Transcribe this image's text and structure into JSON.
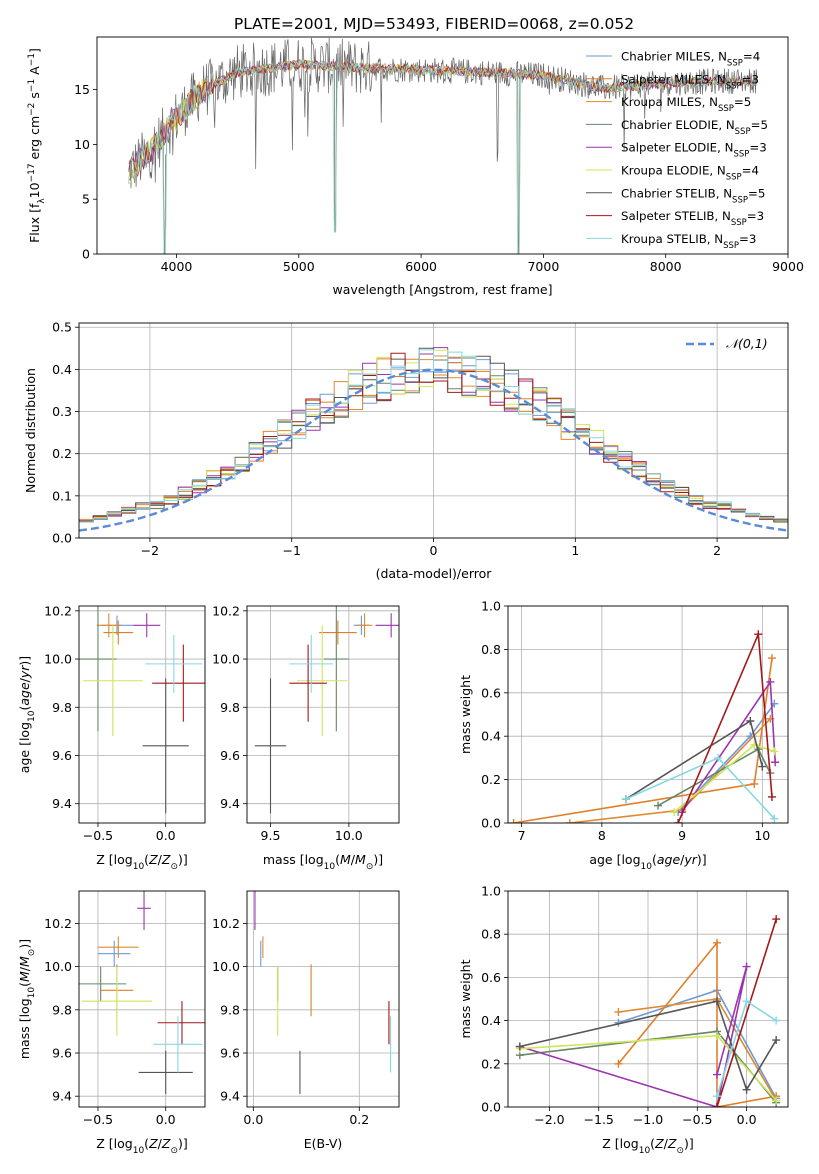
{
  "page_title": "PLATE=2001, MJD=53493, FIBERID=0068, z=0.052",
  "series": [
    {
      "label": "Chabrier MILES, N$_{SSP}$=4",
      "name": "Chabrier MILES",
      "nssp": "4",
      "color": "#6f99d9"
    },
    {
      "label": "Salpeter MILES, N$_{SSP}$=3",
      "name": "Salpeter MILES",
      "nssp": "3",
      "color": "#e07f2a"
    },
    {
      "label": "Kroupa MILES, N$_{SSP}$=5",
      "name": "Kroupa MILES",
      "nssp": "5",
      "color": "#df8a30"
    },
    {
      "label": "Chabrier ELODIE, N$_{SSP}$=5",
      "name": "Chabrier ELODIE",
      "nssp": "5",
      "color": "#66876b"
    },
    {
      "label": "Salpeter ELODIE, N$_{SSP}$=3",
      "name": "Salpeter ELODIE",
      "nssp": "3",
      "color": "#9a35ae"
    },
    {
      "label": "Kroupa ELODIE, N$_{SSP}$=4",
      "name": "Kroupa ELODIE",
      "nssp": "4",
      "color": "#cfe65a"
    },
    {
      "label": "Chabrier STELIB, N$_{SSP}$=5",
      "name": "Chabrier STELIB",
      "nssp": "5",
      "color": "#555555"
    },
    {
      "label": "Salpeter STELIB, N$_{SSP}$=3",
      "name": "Salpeter STELIB",
      "nssp": "3",
      "color": "#a3191b"
    },
    {
      "label": "Kroupa STELIB, N$_{SSP}$=3",
      "name": "Kroupa STELIB",
      "nssp": "3",
      "color": "#86d8e0"
    }
  ],
  "chart_data": [
    {
      "id": "spectrum",
      "type": "line",
      "xlabel": "wavelength [Angstrom, rest frame]",
      "ylabel": "Flux [f_λ10^-17 erg cm^-2 s^-1 A^-1]",
      "xlim": [
        3350,
        9000
      ],
      "ylim": [
        0,
        19.8
      ],
      "xticks": [
        4000,
        5000,
        6000,
        7000,
        8000,
        9000
      ],
      "yticks": [
        0,
        5,
        10,
        15
      ],
      "grid": false,
      "legend": "right",
      "data_range": [
        3610,
        8750
      ],
      "continuum": {
        "x": [
          3610,
          3800,
          4000,
          4200,
          4500,
          5000,
          5500,
          6000,
          6500,
          7000,
          7500,
          8000,
          8500,
          8750
        ],
        "y": [
          7.5,
          9.5,
          12.5,
          14.8,
          16.6,
          17.3,
          17.0,
          16.8,
          16.6,
          16.3,
          15.1,
          15.6,
          15.8,
          15.8
        ]
      },
      "dips": [
        {
          "x": 6800,
          "y": 0
        },
        {
          "x": 3900,
          "y": 0
        },
        {
          "x": 5300,
          "y": 2
        }
      ]
    },
    {
      "id": "residuals",
      "type": "histogram",
      "xlabel": "(data-model)/error",
      "ylabel": "Normed distribution",
      "xlim": [
        -2.5,
        2.5
      ],
      "ylim": [
        0,
        0.51
      ],
      "xticks": [
        -2,
        -1,
        0,
        1,
        2
      ],
      "yticks": [
        0.0,
        0.1,
        0.2,
        0.3,
        0.4,
        0.5
      ],
      "grid": true,
      "legend": "top-right",
      "reference_curve": {
        "label": "𝒩(0,1)",
        "mean": 0,
        "sigma": 1
      },
      "bin_width": 0.1,
      "bin_start": -2.5
    },
    {
      "id": "z-age",
      "type": "errorbar",
      "xlabel": "Z [log10(Z/Z⊙)]",
      "ylabel": "age [log10(age/yr)]",
      "xlim": [
        -0.64,
        0.29
      ],
      "ylim": [
        9.32,
        10.22
      ],
      "xticks": [
        -0.5,
        0.0
      ],
      "yticks": [
        9.4,
        9.6,
        9.8,
        10.0,
        10.2
      ],
      "grid": true,
      "points": [
        {
          "s": 0,
          "x": -0.36,
          "xe": 0.12,
          "y": 10.14,
          "ye": 0.04
        },
        {
          "s": 1,
          "x": -0.35,
          "xe": 0.11,
          "y": 10.11,
          "ye": 0.05
        },
        {
          "s": 2,
          "x": -0.42,
          "xe": 0.09,
          "y": 10.14,
          "ye": 0.05
        },
        {
          "s": 3,
          "x": -0.5,
          "xe": 0.14,
          "y": 10.0,
          "ye": 0.3
        },
        {
          "s": 4,
          "x": -0.14,
          "xe": 0.1,
          "y": 10.14,
          "ye": 0.05
        },
        {
          "s": 5,
          "x": -0.39,
          "xe": 0.22,
          "y": 9.91,
          "ye": 0.23
        },
        {
          "s": 6,
          "x": 0.0,
          "xe": 0.17,
          "y": 9.64,
          "ye": 0.28
        },
        {
          "s": 7,
          "x": 0.13,
          "xe": 0.23,
          "y": 9.9,
          "ye": 0.16
        },
        {
          "s": 8,
          "x": 0.06,
          "xe": 0.21,
          "y": 9.98,
          "ye": 0.12
        }
      ]
    },
    {
      "id": "mass-age",
      "type": "errorbar",
      "xlabel": "mass [log10(M/M⊙)]",
      "ylabel": "",
      "xlim": [
        9.35,
        10.32
      ],
      "ylim": [
        9.32,
        10.22
      ],
      "xticks": [
        9.5,
        10.0
      ],
      "yticks": [
        9.4,
        9.6,
        9.8,
        10.0,
        10.2
      ],
      "grid": true,
      "points": [
        {
          "s": 0,
          "x": 10.08,
          "xe": 0.05,
          "y": 10.14,
          "ye": 0.04
        },
        {
          "s": 1,
          "x": 9.93,
          "xe": 0.12,
          "y": 10.11,
          "ye": 0.05
        },
        {
          "s": 2,
          "x": 10.1,
          "xe": 0.05,
          "y": 10.14,
          "ye": 0.05
        },
        {
          "s": 3,
          "x": 9.92,
          "xe": 0.08,
          "y": 10.0,
          "ye": 0.3
        },
        {
          "s": 4,
          "x": 10.27,
          "xe": 0.1,
          "y": 10.14,
          "ye": 0.05
        },
        {
          "s": 5,
          "x": 9.83,
          "xe": 0.16,
          "y": 9.91,
          "ye": 0.23
        },
        {
          "s": 6,
          "x": 9.5,
          "xe": 0.1,
          "y": 9.64,
          "ye": 0.28
        },
        {
          "s": 7,
          "x": 9.74,
          "xe": 0.12,
          "y": 9.9,
          "ye": 0.16
        },
        {
          "s": 8,
          "x": 9.76,
          "xe": 0.14,
          "y": 9.98,
          "ye": 0.12
        }
      ]
    },
    {
      "id": "age-weight",
      "type": "line",
      "xlabel": "age [log10(age/yr)]",
      "ylabel": "mass weight",
      "xlim": [
        6.83,
        10.32
      ],
      "ylim": [
        0,
        1.0
      ],
      "xticks": [
        7,
        8,
        9,
        10
      ],
      "yticks": [
        0.0,
        0.2,
        0.4,
        0.6,
        0.8,
        1.0
      ],
      "grid": true,
      "lines": [
        {
          "s": 0,
          "x": [
            8.95,
            9.85,
            10.15
          ],
          "y": [
            0.05,
            0.4,
            0.55
          ]
        },
        {
          "s": 1,
          "x": [
            6.9,
            9.9,
            10.12
          ],
          "y": [
            0.0,
            0.18,
            0.76
          ]
        },
        {
          "s": 2,
          "x": [
            7.6,
            9.0,
            10.1
          ],
          "y": [
            0.0,
            0.06,
            0.48
          ]
        },
        {
          "s": 3,
          "x": [
            8.7,
            9.95,
            10.1
          ],
          "y": [
            0.08,
            0.34,
            0.23
          ]
        },
        {
          "s": 4,
          "x": [
            9.0,
            10.1,
            10.16
          ],
          "y": [
            0.05,
            0.65,
            0.28
          ]
        },
        {
          "s": 5,
          "x": [
            8.9,
            9.9,
            10.15
          ],
          "y": [
            0.05,
            0.36,
            0.33
          ]
        },
        {
          "s": 6,
          "x": [
            8.3,
            9.85,
            10.0
          ],
          "y": [
            0.11,
            0.47,
            0.26
          ]
        },
        {
          "s": 7,
          "x": [
            8.95,
            9.95,
            10.12
          ],
          "y": [
            0.0,
            0.87,
            0.12
          ]
        },
        {
          "s": 8,
          "x": [
            8.3,
            9.45,
            10.15
          ],
          "y": [
            0.11,
            0.3,
            0.02
          ]
        }
      ]
    },
    {
      "id": "z-mass",
      "type": "errorbar",
      "xlabel": "Z [log10(Z/Z⊙)]",
      "ylabel": "mass [log10(M/M⊙)]",
      "xlim": [
        -0.64,
        0.29
      ],
      "ylim": [
        9.35,
        10.35
      ],
      "xticks": [
        -0.5,
        0.0
      ],
      "yticks": [
        9.4,
        9.6,
        9.8,
        10.0,
        10.2
      ],
      "grid": true,
      "points": [
        {
          "s": 0,
          "x": -0.38,
          "xe": 0.12,
          "y": 10.06,
          "ye": 0.06
        },
        {
          "s": 1,
          "x": -0.36,
          "xe": 0.12,
          "y": 9.89,
          "ye": 0.12
        },
        {
          "s": 2,
          "x": -0.35,
          "xe": 0.15,
          "y": 10.09,
          "ye": 0.05
        },
        {
          "s": 3,
          "x": -0.48,
          "xe": 0.19,
          "y": 9.92,
          "ye": 0.08
        },
        {
          "s": 4,
          "x": -0.16,
          "xe": 0.05,
          "y": 10.27,
          "ye": 0.1
        },
        {
          "s": 5,
          "x": -0.36,
          "xe": 0.26,
          "y": 9.84,
          "ye": 0.16
        },
        {
          "s": 6,
          "x": 0.0,
          "xe": 0.2,
          "y": 9.51,
          "ye": 0.1
        },
        {
          "s": 7,
          "x": 0.12,
          "xe": 0.18,
          "y": 9.74,
          "ye": 0.1
        },
        {
          "s": 8,
          "x": 0.09,
          "xe": 0.18,
          "y": 9.64,
          "ye": 0.13
        }
      ]
    },
    {
      "id": "ebv-mass",
      "type": "errorbar",
      "xlabel": "E(B-V)",
      "ylabel": "",
      "xlim": [
        -0.012,
        0.275
      ],
      "ylim": [
        9.35,
        10.35
      ],
      "xticks": [
        0.0,
        0.2
      ],
      "yticks": [
        9.4,
        9.6,
        9.8,
        10.0,
        10.2
      ],
      "grid": true,
      "points": [
        {
          "s": 0,
          "x": 0.014,
          "xe": 0,
          "y": 10.06,
          "ye": 0.06
        },
        {
          "s": 1,
          "x": 0.109,
          "xe": 0,
          "y": 9.89,
          "ye": 0.12
        },
        {
          "s": 2,
          "x": 0.018,
          "xe": 0,
          "y": 10.09,
          "ye": 0.05
        },
        {
          "s": 3,
          "x": 0.046,
          "xe": 0,
          "y": 9.92,
          "ye": 0.08
        },
        {
          "s": 4,
          "x": 0.003,
          "xe": 0,
          "y": 10.27,
          "ye": 0.1
        },
        {
          "s": 5,
          "x": 0.046,
          "xe": 0,
          "y": 9.84,
          "ye": 0.16
        },
        {
          "s": 6,
          "x": 0.088,
          "xe": 0,
          "y": 9.51,
          "ye": 0.1
        },
        {
          "s": 7,
          "x": 0.256,
          "xe": 0,
          "y": 9.74,
          "ye": 0.1
        },
        {
          "s": 8,
          "x": 0.259,
          "xe": 0,
          "y": 9.64,
          "ye": 0.13
        }
      ]
    },
    {
      "id": "z-weight",
      "type": "line",
      "xlabel": "Z [log10(Z/Z⊙)]",
      "ylabel": "mass weight",
      "xlim": [
        -2.42,
        0.42
      ],
      "ylim": [
        0,
        1.0
      ],
      "xticks": [
        -2.0,
        -1.5,
        -1.0,
        -0.5,
        0.0
      ],
      "yticks": [
        0.0,
        0.2,
        0.4,
        0.6,
        0.8,
        1.0
      ],
      "grid": true,
      "lines": [
        {
          "s": 0,
          "x": [
            -1.3,
            -0.3,
            0.3
          ],
          "y": [
            0.39,
            0.54,
            0.04
          ]
        },
        {
          "s": 1,
          "x": [
            -1.3,
            -0.3,
            -0.3,
            0.3
          ],
          "y": [
            0.2,
            0.76,
            0.0,
            0.05
          ]
        },
        {
          "s": 2,
          "x": [
            -1.3,
            -0.3,
            0.3
          ],
          "y": [
            0.44,
            0.5,
            0.03
          ]
        },
        {
          "s": 3,
          "x": [
            -2.3,
            -0.3,
            0.3
          ],
          "y": [
            0.24,
            0.35,
            0.02
          ]
        },
        {
          "s": 4,
          "x": [
            -2.3,
            -0.3,
            0.0,
            -0.3
          ],
          "y": [
            0.28,
            0.0,
            0.65,
            0.15
          ]
        },
        {
          "s": 5,
          "x": [
            -2.3,
            -0.3,
            0.3
          ],
          "y": [
            0.27,
            0.33,
            0.03
          ]
        },
        {
          "s": 6,
          "x": [
            -2.3,
            -0.3,
            0.0,
            0.3
          ],
          "y": [
            0.28,
            0.49,
            0.08,
            0.31
          ]
        },
        {
          "s": 7,
          "x": [
            -0.3,
            0.3
          ],
          "y": [
            0.0,
            0.87
          ]
        },
        {
          "s": 8,
          "x": [
            -0.3,
            0.0,
            0.3
          ],
          "y": [
            0.05,
            0.49,
            0.4
          ]
        }
      ]
    }
  ]
}
